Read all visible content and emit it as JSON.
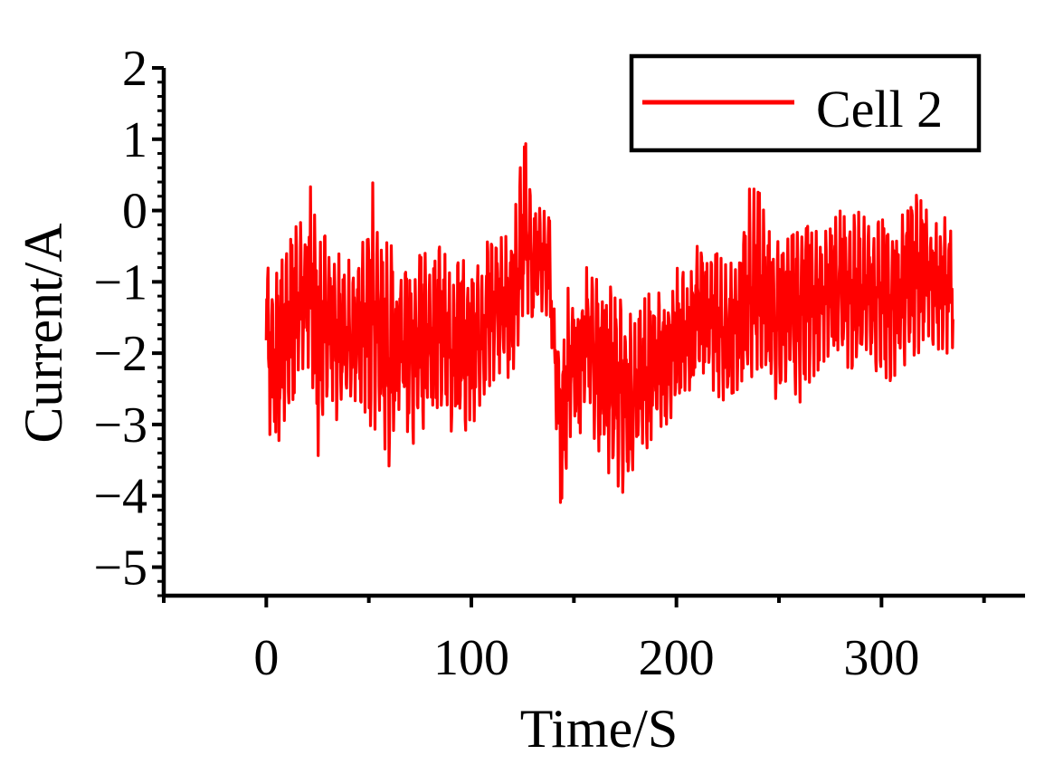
{
  "chart_data": {
    "type": "line",
    "xlabel": "Time/S",
    "ylabel": "Current/A",
    "xlim": [
      -50,
      370
    ],
    "ylim": [
      -5.4,
      2
    ],
    "x_ticks": [
      0,
      100,
      200,
      300
    ],
    "y_ticks": [
      2,
      1,
      0,
      -1,
      -2,
      -3,
      -4,
      -5
    ],
    "x_tick_labels": [
      "0",
      "100",
      "200",
      "300"
    ],
    "y_tick_labels": [
      "2",
      "1",
      "0",
      "−1",
      "−2",
      "−3",
      "−4",
      "−5"
    ],
    "grid": false,
    "legend_position": "top-right",
    "series": [
      {
        "name": "Cell 2",
        "color": "#ff0000",
        "x_start": 0,
        "x_end": 335,
        "upper_envelope": [
          [
            0,
            -0.8
          ],
          [
            5,
            -0.8
          ],
          [
            10,
            -0.6
          ],
          [
            14,
            -0.1
          ],
          [
            18,
            -0.2
          ],
          [
            22,
            0.4
          ],
          [
            25,
            -0.5
          ],
          [
            30,
            -0.3
          ],
          [
            35,
            -0.6
          ],
          [
            40,
            -0.7
          ],
          [
            45,
            -0.6
          ],
          [
            52,
            0.4
          ],
          [
            55,
            -0.6
          ],
          [
            60,
            -0.4
          ],
          [
            66,
            -1.0
          ],
          [
            70,
            -0.6
          ],
          [
            75,
            -0.6
          ],
          [
            80,
            -0.6
          ],
          [
            85,
            -0.5
          ],
          [
            90,
            -0.7
          ],
          [
            95,
            -0.7
          ],
          [
            100,
            -0.7
          ],
          [
            105,
            -0.8
          ],
          [
            110,
            -0.1
          ],
          [
            115,
            -0.4
          ],
          [
            120,
            -0.3
          ],
          [
            126,
            1.1
          ],
          [
            130,
            -0.2
          ],
          [
            134,
            0.3
          ],
          [
            138,
            0.0
          ],
          [
            141,
            -1.5
          ],
          [
            144,
            -1.6
          ],
          [
            148,
            -0.9
          ],
          [
            152,
            -1.2
          ],
          [
            156,
            -0.8
          ],
          [
            160,
            -0.8
          ],
          [
            165,
            -0.9
          ],
          [
            170,
            -1.2
          ],
          [
            175,
            -1.3
          ],
          [
            180,
            -1.6
          ],
          [
            185,
            -1.2
          ],
          [
            190,
            -1.1
          ],
          [
            195,
            -1.3
          ],
          [
            200,
            -0.8
          ],
          [
            205,
            -0.9
          ],
          [
            210,
            -0.5
          ],
          [
            215,
            -0.6
          ],
          [
            220,
            -0.6
          ],
          [
            225,
            -0.8
          ],
          [
            230,
            -0.6
          ],
          [
            235,
            0.3
          ],
          [
            240,
            0.3
          ],
          [
            245,
            -0.3
          ],
          [
            250,
            -0.2
          ],
          [
            255,
            -0.3
          ],
          [
            260,
            -0.2
          ],
          [
            265,
            -0.1
          ],
          [
            270,
            -0.4
          ],
          [
            275,
            -0.2
          ],
          [
            280,
            0.0
          ],
          [
            285,
            -0.1
          ],
          [
            290,
            0.0
          ],
          [
            295,
            -0.3
          ],
          [
            300,
            -0.1
          ],
          [
            305,
            -0.3
          ],
          [
            310,
            -0.1
          ],
          [
            314,
            0.7
          ],
          [
            318,
            0.2
          ],
          [
            322,
            0.0
          ],
          [
            326,
            -0.2
          ],
          [
            330,
            -0.1
          ],
          [
            335,
            -0.1
          ]
        ],
        "lower_envelope": [
          [
            0,
            -3.0
          ],
          [
            5,
            -3.4
          ],
          [
            10,
            -2.8
          ],
          [
            14,
            -2.6
          ],
          [
            18,
            -2.2
          ],
          [
            22,
            -2.2
          ],
          [
            25,
            -3.5
          ],
          [
            30,
            -2.5
          ],
          [
            35,
            -3.0
          ],
          [
            40,
            -2.8
          ],
          [
            45,
            -2.6
          ],
          [
            52,
            -3.1
          ],
          [
            55,
            -3.0
          ],
          [
            60,
            -3.6
          ],
          [
            66,
            -2.6
          ],
          [
            70,
            -3.3
          ],
          [
            75,
            -3.2
          ],
          [
            80,
            -2.9
          ],
          [
            85,
            -2.7
          ],
          [
            90,
            -3.1
          ],
          [
            95,
            -2.9
          ],
          [
            100,
            -3.3
          ],
          [
            105,
            -2.6
          ],
          [
            110,
            -2.5
          ],
          [
            115,
            -2.4
          ],
          [
            120,
            -2.3
          ],
          [
            126,
            -1.4
          ],
          [
            130,
            -1.5
          ],
          [
            134,
            -1.4
          ],
          [
            138,
            -1.5
          ],
          [
            141,
            -2.8
          ],
          [
            144,
            -4.5
          ],
          [
            148,
            -3.3
          ],
          [
            152,
            -3.2
          ],
          [
            156,
            -2.9
          ],
          [
            160,
            -3.2
          ],
          [
            165,
            -3.6
          ],
          [
            170,
            -3.8
          ],
          [
            175,
            -4.0
          ],
          [
            180,
            -3.5
          ],
          [
            185,
            -3.5
          ],
          [
            190,
            -3.2
          ],
          [
            195,
            -3.0
          ],
          [
            200,
            -2.8
          ],
          [
            205,
            -2.6
          ],
          [
            210,
            -2.3
          ],
          [
            215,
            -2.4
          ],
          [
            220,
            -2.6
          ],
          [
            225,
            -2.7
          ],
          [
            230,
            -2.5
          ],
          [
            235,
            -2.4
          ],
          [
            240,
            -2.2
          ],
          [
            245,
            -2.5
          ],
          [
            250,
            -2.7
          ],
          [
            255,
            -2.5
          ],
          [
            260,
            -2.7
          ],
          [
            265,
            -2.4
          ],
          [
            270,
            -2.2
          ],
          [
            275,
            -2.0
          ],
          [
            280,
            -2.2
          ],
          [
            285,
            -2.2
          ],
          [
            290,
            -2.3
          ],
          [
            295,
            -2.2
          ],
          [
            300,
            -2.3
          ],
          [
            305,
            -2.4
          ],
          [
            310,
            -2.1
          ],
          [
            314,
            -2.3
          ],
          [
            318,
            -2.0
          ],
          [
            322,
            -1.8
          ],
          [
            326,
            -1.9
          ],
          [
            330,
            -2.0
          ],
          [
            335,
            -2.0
          ]
        ]
      }
    ]
  }
}
